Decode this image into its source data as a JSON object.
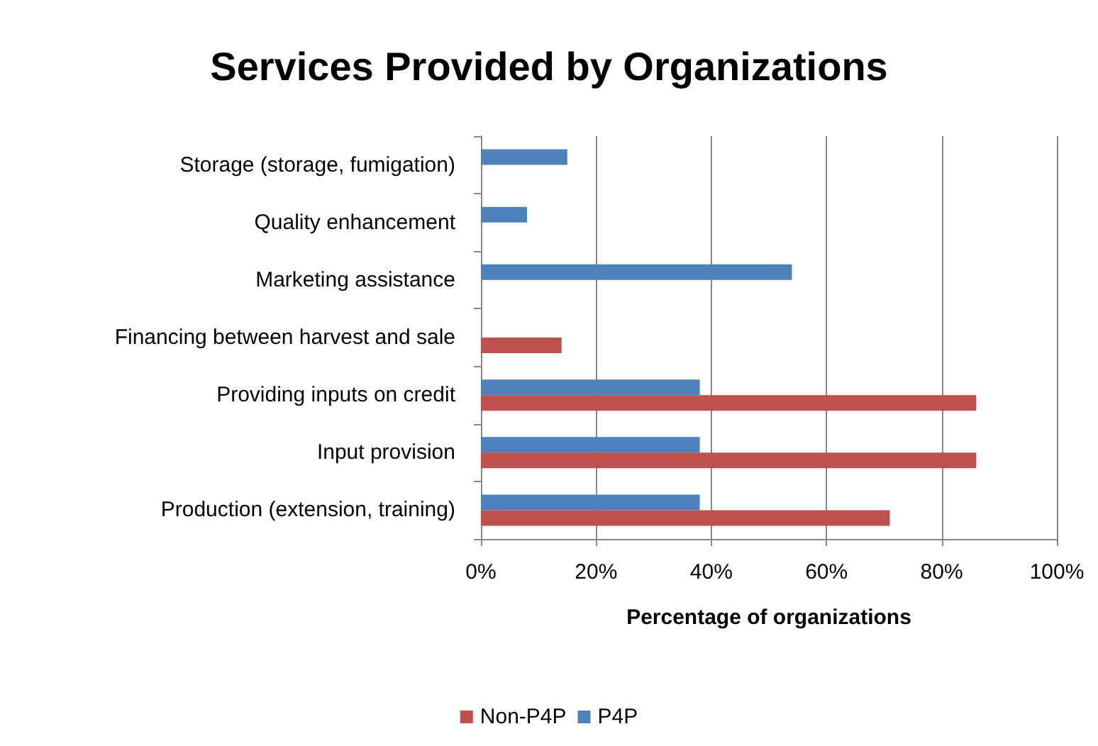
{
  "chart_data": {
    "type": "bar",
    "orientation": "horizontal",
    "title": "Services Provided by Organizations",
    "xlabel": "Percentage of organizations",
    "categories": [
      "Storage (storage, fumigation)",
      "Quality enhancement",
      "Marketing assistance",
      "Financing between harvest and sale",
      "Providing inputs on credit",
      "Input provision",
      "Production (extension, training)"
    ],
    "series": [
      {
        "name": "Non-P4P",
        "color": "#c0504d",
        "values": [
          null,
          null,
          null,
          14,
          86,
          86,
          71
        ]
      },
      {
        "name": "P4P",
        "color": "#4f81bd",
        "values": [
          15,
          8,
          54,
          null,
          38,
          38,
          38
        ]
      }
    ],
    "xlim": [
      0,
      100
    ],
    "xticks": [
      {
        "value": 0,
        "label": "0%"
      },
      {
        "value": 20,
        "label": "20%"
      },
      {
        "value": 40,
        "label": "40%"
      },
      {
        "value": 60,
        "label": "60%"
      },
      {
        "value": 80,
        "label": "80%"
      },
      {
        "value": 100,
        "label": "100%"
      }
    ],
    "grid": "x",
    "legend": "bottom"
  }
}
